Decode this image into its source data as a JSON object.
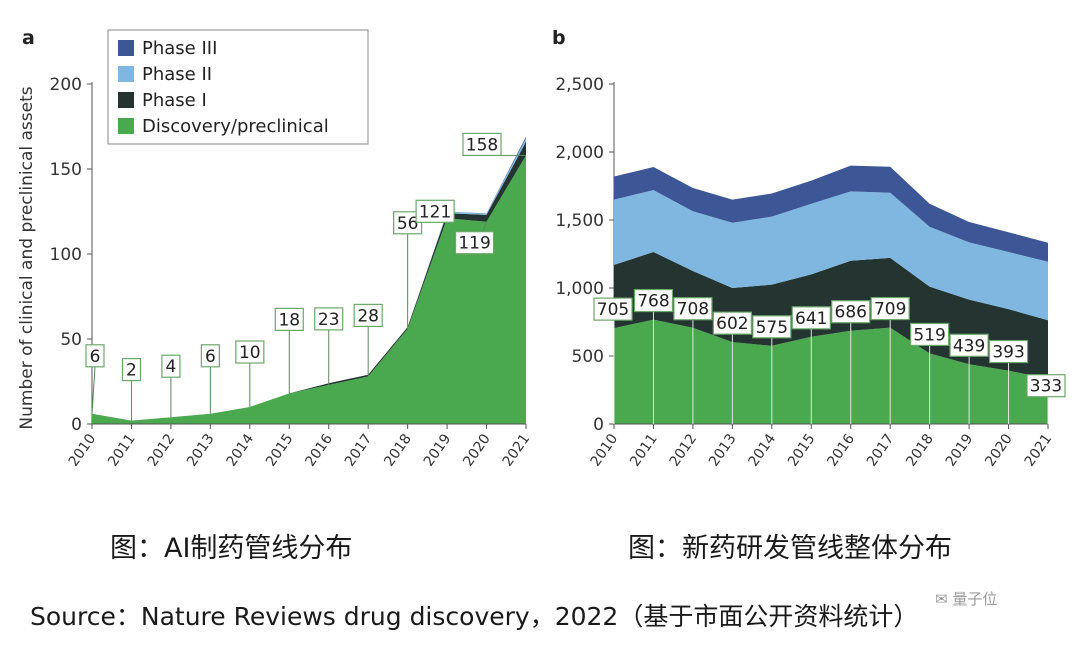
{
  "chart_data": [
    {
      "type": "area",
      "panel_label": "a",
      "ylabel": "Number of clinical and preclinical assets",
      "x": [
        "2010",
        "2011",
        "2012",
        "2013",
        "2014",
        "2015",
        "2016",
        "2017",
        "2018",
        "2019",
        "2020",
        "2021"
      ],
      "ylim": [
        0,
        200
      ],
      "yticks": [
        "0",
        "50",
        "100",
        "150",
        "200"
      ],
      "series": [
        {
          "name": "Discovery/preclinical",
          "values": [
            6,
            2,
            4,
            6,
            10,
            18,
            23,
            28,
            56,
            121,
            119,
            158
          ]
        },
        {
          "name": "Phase I",
          "values": [
            0,
            0,
            0,
            0,
            0,
            0,
            1,
            1,
            1,
            3,
            4,
            8
          ]
        },
        {
          "name": "Phase II",
          "values": [
            0,
            0,
            0,
            0,
            0,
            0,
            0,
            0,
            0,
            1,
            1,
            2
          ]
        },
        {
          "name": "Phase III",
          "values": [
            0,
            0,
            0,
            0,
            0,
            0,
            0,
            0,
            0,
            0,
            0,
            1
          ]
        }
      ],
      "data_labels": [
        "6",
        "2",
        "4",
        "6",
        "10",
        "18",
        "23",
        "28",
        "56",
        "121",
        "119",
        "158"
      ],
      "legend_position": "top-left",
      "colors": {
        "Discovery/preclinical": "#4aa84f",
        "Phase I": "#243430",
        "Phase II": "#80b7e1",
        "Phase III": "#3c5696"
      }
    },
    {
      "type": "area",
      "panel_label": "b",
      "x": [
        "2010",
        "2011",
        "2012",
        "2013",
        "2014",
        "2015",
        "2016",
        "2017",
        "2018",
        "2019",
        "2020",
        "2021"
      ],
      "ylim": [
        0,
        2500
      ],
      "yticks": [
        "0",
        "500",
        "1,000",
        "1,500",
        "2,000",
        "2,500"
      ],
      "series": [
        {
          "name": "Discovery/preclinical",
          "values": [
            705,
            768,
            708,
            602,
            575,
            641,
            686,
            709,
            519,
            439,
            393,
            333
          ]
        },
        {
          "name": "Phase I",
          "values": [
            465,
            497,
            417,
            398,
            450,
            459,
            514,
            512,
            491,
            476,
            452,
            430
          ]
        },
        {
          "name": "Phase II",
          "values": [
            480,
            455,
            440,
            480,
            500,
            520,
            510,
            480,
            440,
            420,
            420,
            430
          ]
        },
        {
          "name": "Phase III",
          "values": [
            170,
            170,
            170,
            170,
            170,
            170,
            190,
            190,
            170,
            150,
            145,
            140
          ]
        }
      ],
      "data_labels": [
        "705",
        "768",
        "708",
        "602",
        "575",
        "641",
        "686",
        "709",
        "519",
        "439",
        "393",
        "333"
      ],
      "colors": {
        "Discovery/preclinical": "#4aa84f",
        "Phase I": "#243430",
        "Phase II": "#80b7e1",
        "Phase III": "#3c5696"
      }
    }
  ],
  "captions": {
    "a": "图：AI制药管线分布",
    "b": "图：新药研发管线整体分布",
    "source": "Source：Nature Reviews drug discovery，2022（基于市面公开资料统计）",
    "watermark": "量子位"
  }
}
